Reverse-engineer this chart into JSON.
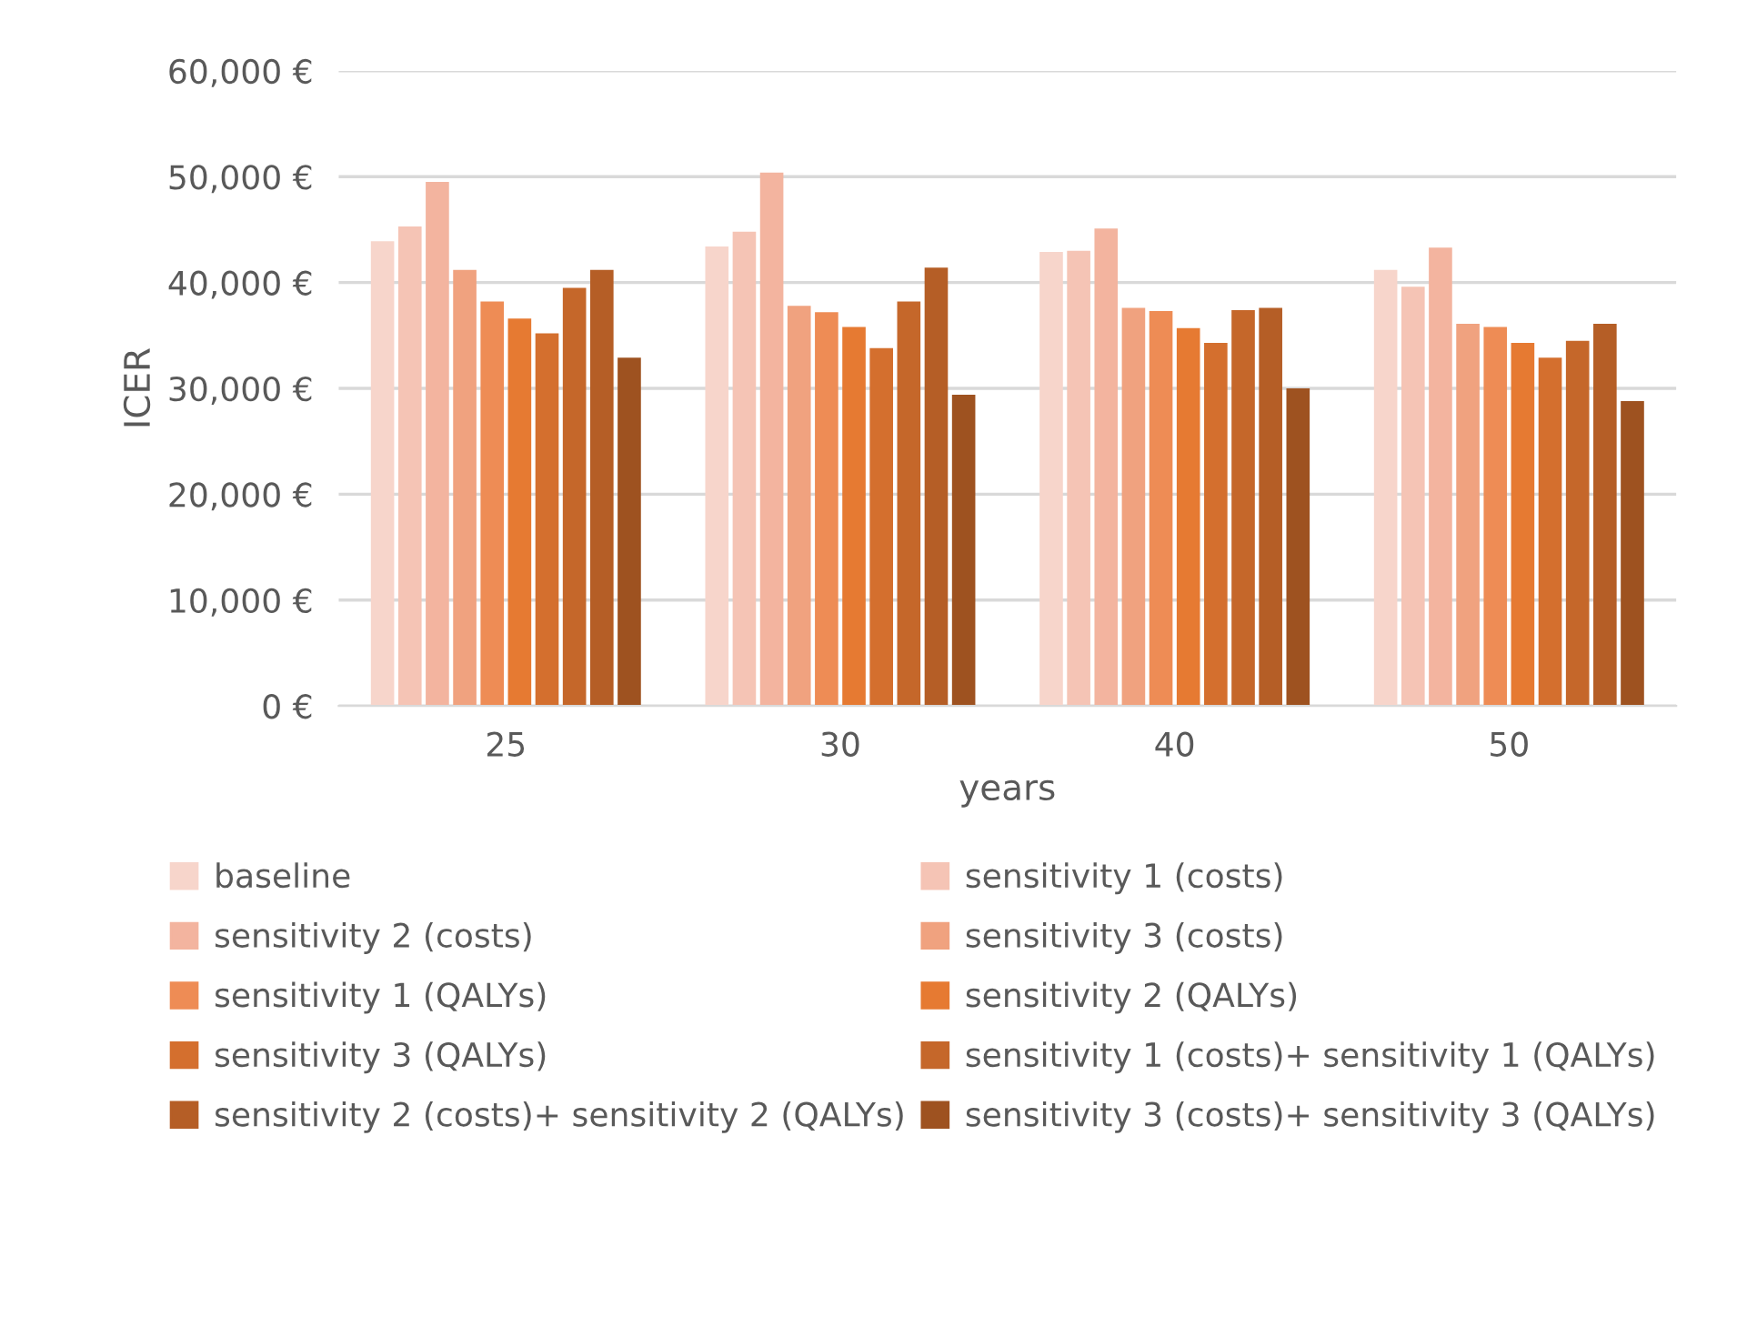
{
  "chart_data": {
    "type": "bar",
    "xlabel": "years",
    "ylabel": "ICER",
    "categories": [
      "25",
      "30",
      "40",
      "50"
    ],
    "series": [
      {
        "name": "baseline",
        "color": "#f7d5cb",
        "values": [
          43900,
          43400,
          42900,
          41200
        ]
      },
      {
        "name": "sensitivity 1 (costs)",
        "color": "#f5c4b5",
        "values": [
          45300,
          44800,
          43000,
          39600
        ]
      },
      {
        "name": "sensitivity 2 (costs)",
        "color": "#f3b49f",
        "values": [
          49500,
          50400,
          45100,
          43300
        ]
      },
      {
        "name": "sensitivity 3 (costs)",
        "color": "#f0a27f",
        "values": [
          41200,
          37800,
          37600,
          36100
        ]
      },
      {
        "name": "sensitivity 1 (QALYs)",
        "color": "#ee8c55",
        "values": [
          38200,
          37200,
          37300,
          35800
        ]
      },
      {
        "name": "sensitivity 2 (QALYs)",
        "color": "#e67a32",
        "values": [
          36600,
          35800,
          35700,
          34300
        ]
      },
      {
        "name": "sensitivity 3 (QALYs)",
        "color": "#d46f2e",
        "values": [
          35200,
          33800,
          34300,
          32900
        ]
      },
      {
        "name": "sensitivity 1 (costs)+ sensitivity 1 (QALYs)",
        "color": "#c5672a",
        "values": [
          39500,
          38200,
          37400,
          34500
        ]
      },
      {
        "name": "sensitivity 2 (costs)+ sensitivity 2 (QALYs)",
        "color": "#b55e26",
        "values": [
          41200,
          41400,
          37600,
          36100
        ]
      },
      {
        "name": "sensitivity 3 (costs)+ sensitivity 3 (QALYs)",
        "color": "#9e5220",
        "values": [
          32900,
          29400,
          30000,
          28800
        ]
      }
    ],
    "ylim": [
      0,
      60000
    ],
    "yticks": [
      {
        "value": 0,
        "label": "0 €"
      },
      {
        "value": 10000,
        "label": "10,000 €"
      },
      {
        "value": 20000,
        "label": "20,000 €"
      },
      {
        "value": 30000,
        "label": "30,000 €"
      },
      {
        "value": 40000,
        "label": "40,000 €"
      },
      {
        "value": 50000,
        "label": "50,000 €"
      },
      {
        "value": 60000,
        "label": "60,000 €"
      }
    ],
    "grid": "y",
    "legend": "bottom"
  }
}
